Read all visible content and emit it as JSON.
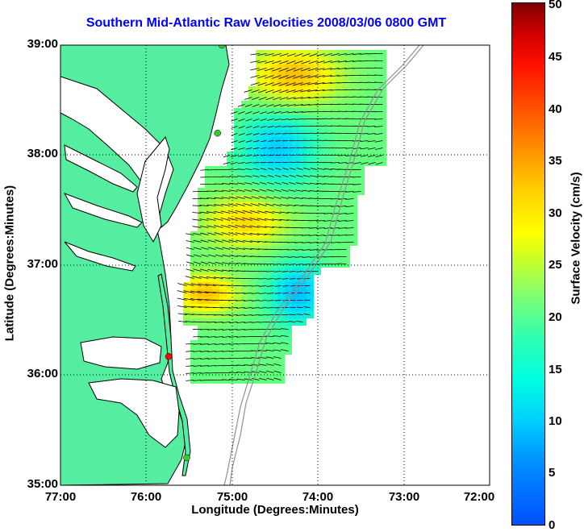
{
  "title": "Southern Mid-Atlantic Raw Velocities 2008/03/06 0800 GMT",
  "x_axis": {
    "label": "Longitude (Degrees:Minutes)",
    "ticks": [
      "77:00",
      "76:00",
      "75:00",
      "74:00",
      "73:00",
      "72:00"
    ]
  },
  "y_axis": {
    "label": "Latitude (Degrees:Minutes)",
    "ticks": [
      "39:00",
      "38:00",
      "37:00",
      "36:00",
      "35:00"
    ]
  },
  "colorbar": {
    "label": "Surface Velocity (cm/s)",
    "ticks": [
      "50",
      "45",
      "40",
      "35",
      "30",
      "25",
      "20",
      "15",
      "10",
      "5",
      "0"
    ],
    "range": [
      0,
      50
    ]
  },
  "colors": {
    "land": "#55eea0",
    "ocean": "#ffffff",
    "coast": "#000000",
    "bathymetry": "#909090",
    "title": "#0000ff",
    "station_green": "#33cc33",
    "station_red": "#ff0000"
  },
  "map": {
    "extent": {
      "lon": [
        77.0,
        72.0
      ],
      "lat": [
        35.0,
        39.0
      ]
    },
    "stations": [
      {
        "lon": 75.12,
        "lat": 39.0,
        "color": "green"
      },
      {
        "lon": 75.17,
        "lat": 38.2,
        "color": "green"
      },
      {
        "lon": 75.74,
        "lat": 36.17,
        "color": "red"
      },
      {
        "lon": 75.53,
        "lat": 35.25,
        "color": "green"
      }
    ]
  }
}
